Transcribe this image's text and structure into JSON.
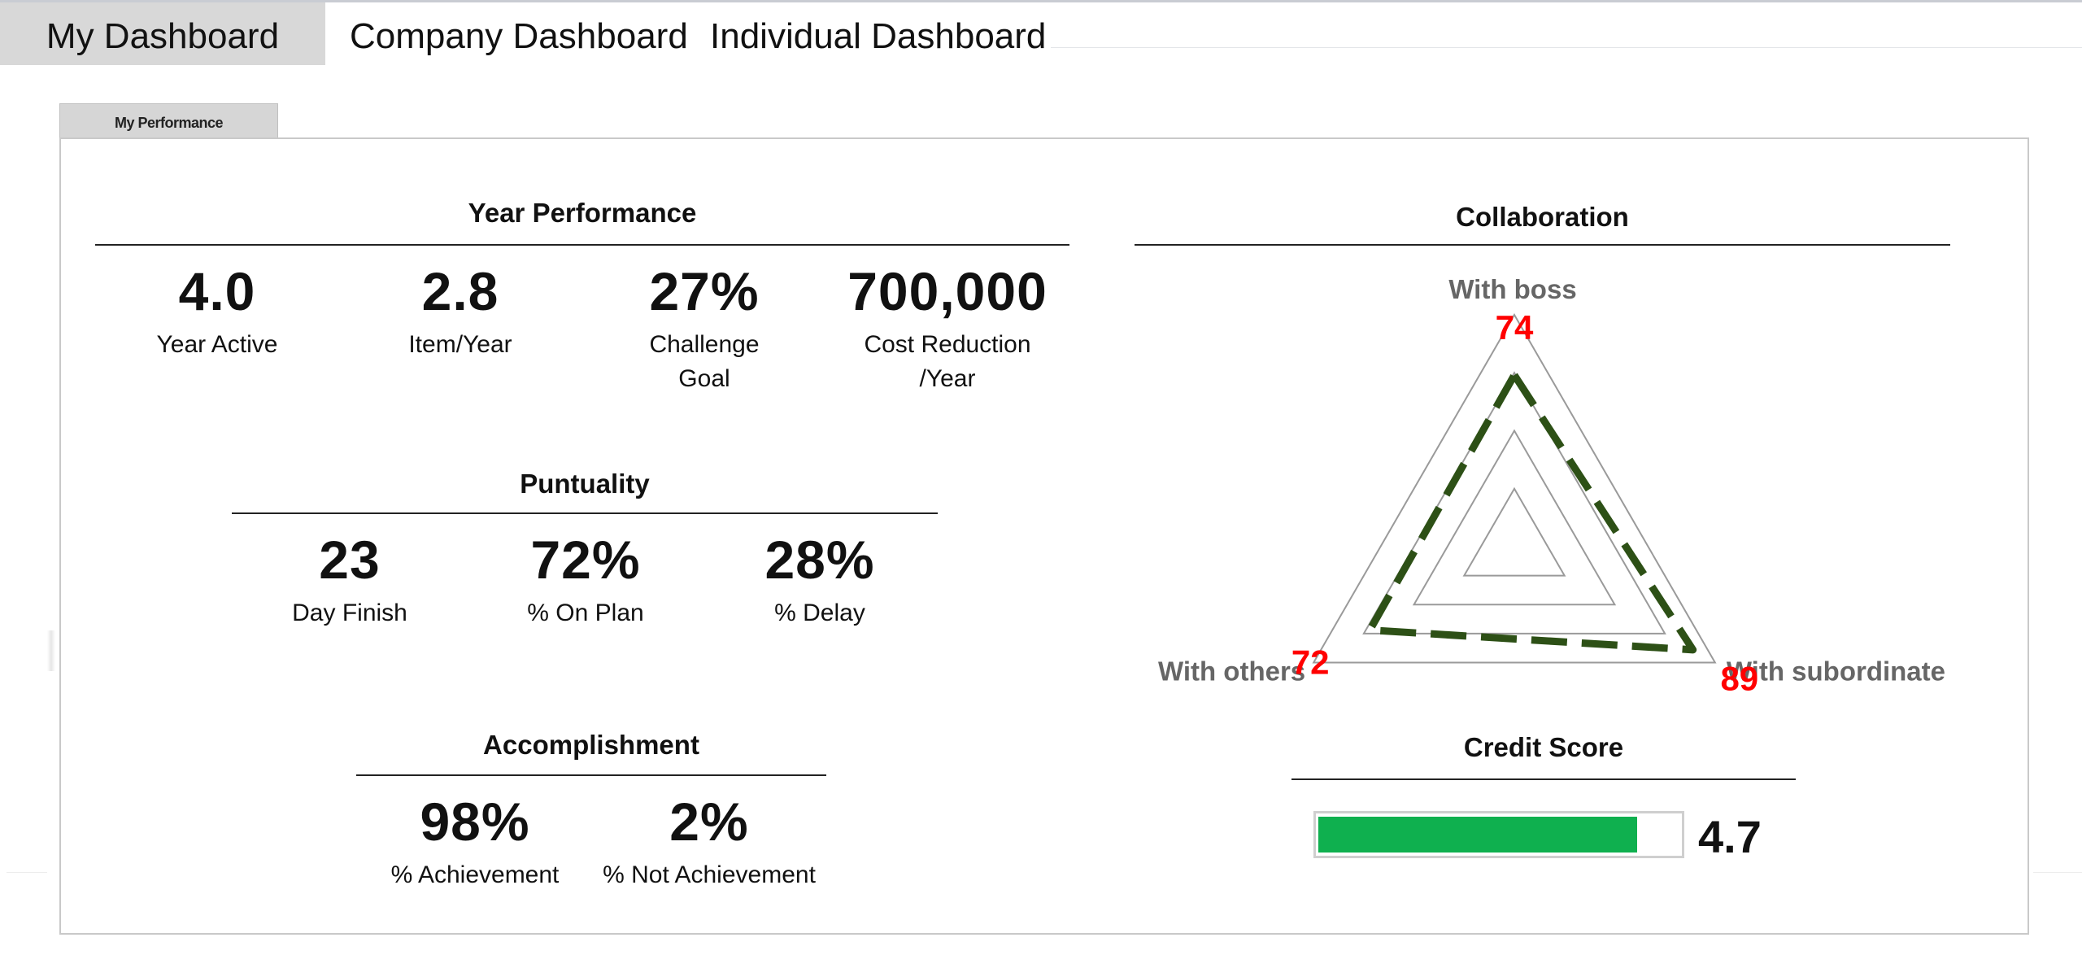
{
  "tabs": [
    {
      "label": "My Dashboard",
      "active": true
    },
    {
      "label": "Company Dashboard",
      "active": false
    },
    {
      "label": "Individual Dashboard",
      "active": false
    }
  ],
  "panel_tab": "My Performance",
  "year_performance": {
    "title": "Year Performance",
    "kpis": [
      {
        "value": "4.0",
        "label": "Year Active"
      },
      {
        "value": "2.8",
        "label": "Item/Year"
      },
      {
        "value": "27%",
        "label": "Challenge\nGoal"
      },
      {
        "value": "700,000",
        "label": "Cost Reduction\n/Year"
      }
    ]
  },
  "punctuality": {
    "title": "Puntuality",
    "kpis": [
      {
        "value": "23",
        "label": "Day Finish"
      },
      {
        "value": "72%",
        "label": "% On Plan"
      },
      {
        "value": "28%",
        "label": "% Delay"
      }
    ]
  },
  "accomplishment": {
    "title": "Accomplishment",
    "kpis": [
      {
        "value": "98%",
        "label": "% Achievement"
      },
      {
        "value": "2%",
        "label": "% Not Achievement"
      }
    ]
  },
  "collaboration": {
    "title": "Collaboration",
    "axes": [
      {
        "label": "With boss",
        "value": 74
      },
      {
        "label": "With subordinate",
        "value": 89
      },
      {
        "label": "With others",
        "value": 72
      }
    ],
    "max": 100,
    "rings": 4,
    "series_color": "#2d5016",
    "value_color": "#ff0000"
  },
  "credit_score": {
    "title": "Credit Score",
    "value": "4.7",
    "max": 5,
    "bar_color": "#0fb04f"
  }
}
